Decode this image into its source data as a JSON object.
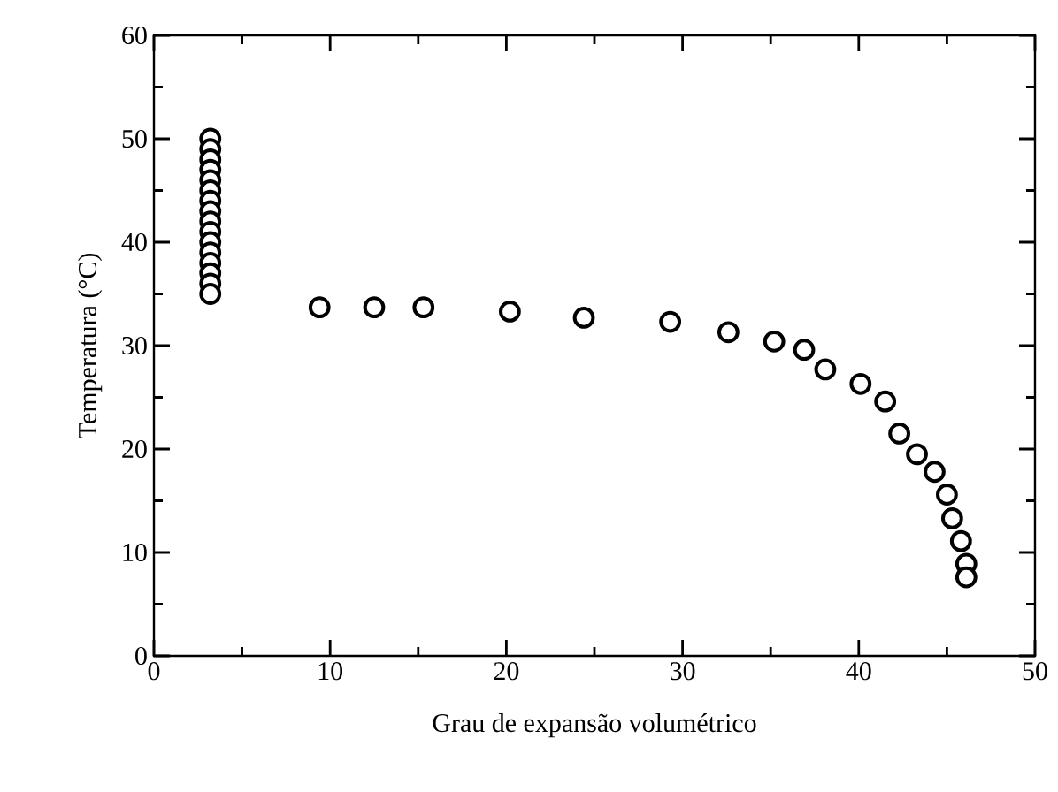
{
  "chart_data": {
    "type": "scatter",
    "xlabel": "Grau de expansão volumétrico",
    "ylabel": "Temperatura (°C)",
    "xlim": [
      0,
      50
    ],
    "ylim": [
      0,
      60
    ],
    "xticks": [
      0,
      10,
      20,
      30,
      40,
      50
    ],
    "yticks": [
      0,
      10,
      20,
      30,
      40,
      50,
      60
    ],
    "grid": false,
    "marker": "circle",
    "series": [
      {
        "color": "#000000",
        "x": [
          3.2,
          3.2,
          3.2,
          3.2,
          3.2,
          3.2,
          3.2,
          3.2,
          3.2,
          3.2,
          3.2,
          3.2,
          3.2,
          3.2,
          3.2,
          3.2,
          9.4,
          12.5,
          15.3,
          20.2,
          24.4,
          29.3,
          32.6,
          35.2,
          36.9,
          38.1,
          40.1,
          41.5,
          42.3,
          43.3,
          44.3,
          45.0,
          45.3,
          45.8,
          46.1,
          46.1
        ],
        "values": [
          50,
          49,
          48,
          47,
          46,
          45,
          44,
          43,
          42,
          41,
          40,
          39,
          38,
          37,
          36,
          35,
          33.7,
          33.7,
          33.7,
          33.3,
          32.7,
          32.3,
          31.3,
          30.4,
          29.6,
          27.7,
          26.3,
          24.6,
          21.5,
          19.5,
          17.8,
          15.6,
          13.3,
          11.1,
          8.9,
          7.6
        ]
      }
    ]
  }
}
